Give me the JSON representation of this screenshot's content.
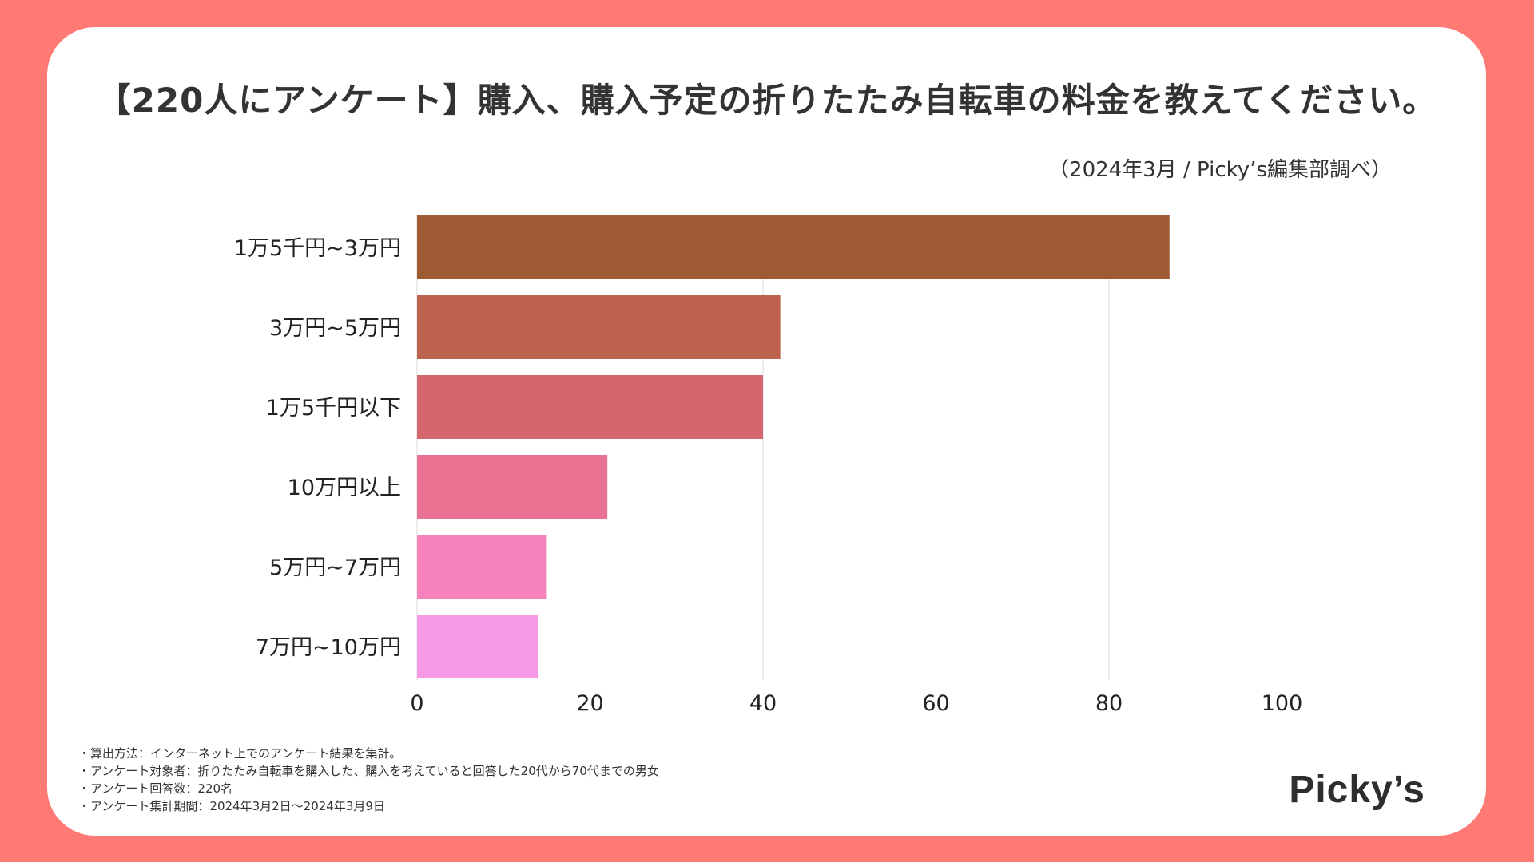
{
  "title": "【220人にアンケート】購入、購入予定の折りたたみ自転車の料金を教えてください。",
  "subtitle": "（2024年3月 / Picky’s編集部調べ）",
  "chart_data": {
    "type": "bar",
    "orientation": "horizontal",
    "categories": [
      "1万5千円~3万円",
      "3万円~5万円",
      "1万5千円以下",
      "10万円以上",
      "5万円~7万円",
      "7万円~10万円"
    ],
    "values": [
      87,
      42,
      40,
      22,
      15,
      14
    ],
    "colors": [
      "#9E5B33",
      "#BE6350",
      "#D6666E",
      "#E97192",
      "#F582BB",
      "#F799E4"
    ],
    "xlim": [
      0,
      120
    ],
    "xticks": [
      0,
      20,
      40,
      60,
      80,
      100
    ],
    "grid": true,
    "xlabel": "",
    "ylabel": ""
  },
  "footnotes": [
    "・算出方法：インターネット上でのアンケート結果を集計。",
    "・アンケート対象者：折りたたみ自転車を購入した、購入を考えていると回答した20代から70代までの男女",
    "・アンケート回答数：220名",
    "・アンケート集計期間：2024年3月2日〜2024年3月9日"
  ],
  "logo": "Picky’s",
  "colors": {
    "background": "#FF7A74",
    "card": "#FFFFFF"
  }
}
